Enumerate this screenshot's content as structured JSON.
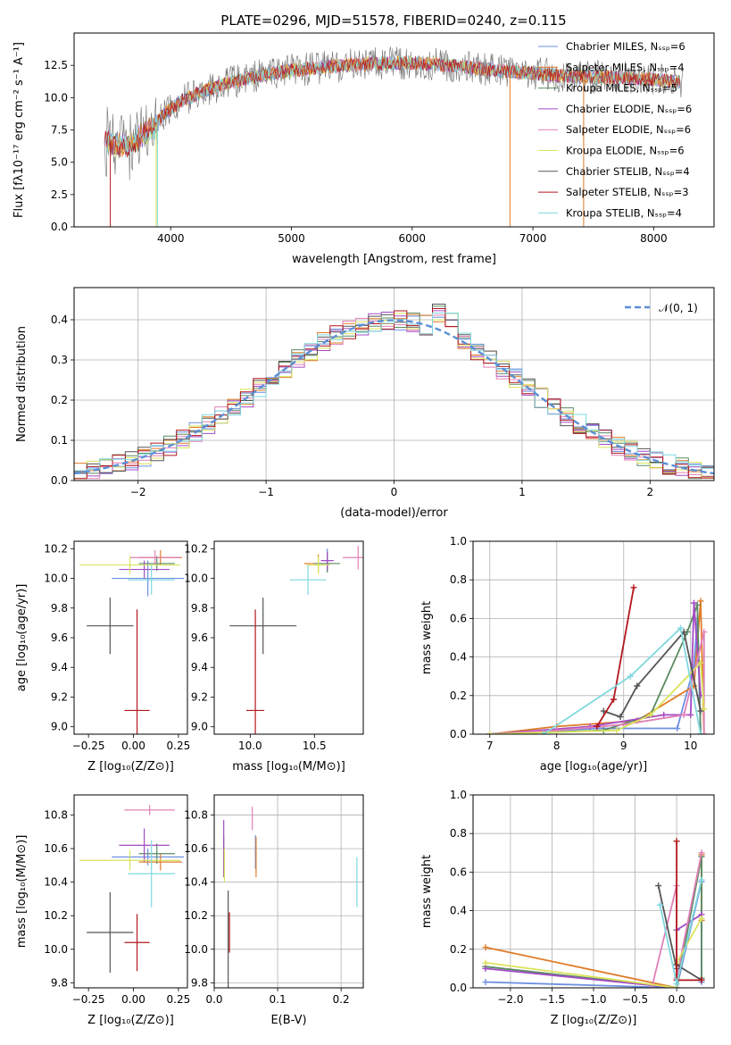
{
  "figure_title": "PLATE=0296, MJD=51578, FIBERID=0240, z=0.115",
  "model_colors": [
    "#6d8fe0",
    "#e07b27",
    "#5a8a62",
    "#a34bc4",
    "#e081b8",
    "#d9e35c",
    "#555555",
    "#b3171d",
    "#7fd8de"
  ],
  "chart_data": [
    {
      "id": "spectrum",
      "type": "line",
      "title": "PLATE=0296, MJD=51578, FIBERID=0240, z=0.115",
      "xlabel": "wavelength [Angstrom, rest frame]",
      "ylabel": "Flux [fλ10⁻¹⁷ erg cm⁻² s⁻¹ A⁻¹]",
      "xlim": [
        3200,
        8500
      ],
      "ylim": [
        0,
        15
      ],
      "xticks": [
        "4000",
        "5000",
        "6000",
        "7000",
        "8000"
      ],
      "yticks": [
        "0.0",
        "2.5",
        "5.0",
        "7.5",
        "10.0",
        "12.5"
      ],
      "legend_loc": "right",
      "series": [
        {
          "name": "Chabrier MILES, N_SSP=6",
          "legend_text": "Chabrier MILES, Nₛₛₚ=6"
        },
        {
          "name": "Salpeter MILES, N_SSP=4",
          "legend_text": "Salpeter MILES, Nₛₛₚ=4"
        },
        {
          "name": "Kroupa MILES, N_SSP=5",
          "legend_text": "Kroupa MILES, Nₛₛₚ=5"
        },
        {
          "name": "Chabrier ELODIE, N_SSP=6",
          "legend_text": "Chabrier ELODIE, Nₛₛₚ=6"
        },
        {
          "name": "Salpeter ELODIE, N_SSP=6",
          "legend_text": "Salpeter ELODIE, Nₛₛₚ=6"
        },
        {
          "name": "Kroupa ELODIE, N_SSP=6",
          "legend_text": "Kroupa ELODIE, Nₛₛₚ=6"
        },
        {
          "name": "Chabrier STELIB, N_SSP=4",
          "legend_text": "Chabrier STELIB, Nₛₛₚ=4"
        },
        {
          "name": "Salpeter STELIB, N_SSP=3",
          "legend_text": "Salpeter STELIB, Nₛₛₚ=3"
        },
        {
          "name": "Kroupa STELIB, N_SSP=4",
          "legend_text": "Kroupa STELIB, Nₛₛₚ=4"
        }
      ],
      "continuum": {
        "x": [
          3450,
          3650,
          3750,
          3850,
          3950,
          4100,
          4300,
          4500,
          4800,
          5000,
          5300,
          5600,
          5900,
          6200,
          6500,
          6800,
          7000,
          7200,
          7400,
          7600,
          7800,
          8000,
          8200
        ],
        "y": [
          6.6,
          6.3,
          6.9,
          7.6,
          8.8,
          9.8,
          10.6,
          11.2,
          11.8,
          12.1,
          12.4,
          12.6,
          12.7,
          12.6,
          12.3,
          12.0,
          11.9,
          11.7,
          11.6,
          11.6,
          11.5,
          11.4,
          11.2
        ]
      }
    },
    {
      "id": "residuals",
      "type": "histogram",
      "xlabel": "(data-model)/error",
      "ylabel": "Normed distribution",
      "xlim": [
        -2.5,
        2.5
      ],
      "ylim": [
        0,
        0.48
      ],
      "xticks": [
        "−2",
        "−1",
        "0",
        "1",
        "2"
      ],
      "yticks": [
        "0.0",
        "0.1",
        "0.2",
        "0.3",
        "0.4"
      ],
      "grid": true,
      "legend_loc": "upper right",
      "legend": "𝒩(0, 1)",
      "bin_width": 0.1,
      "normal_curve": {
        "mean": 0,
        "sigma": 1
      }
    },
    {
      "id": "age-vs-Z",
      "type": "errorbar",
      "xlabel": "Z [log₁₀(Z/Z⊙)]",
      "ylabel": "age  [log₁₀(age/yr)]",
      "xlim": [
        -0.33,
        0.3
      ],
      "ylim": [
        8.95,
        10.25
      ],
      "xticks": [
        "−0.25",
        "0.00",
        "0.25"
      ],
      "yticks": [
        "9.0",
        "9.2",
        "9.4",
        "9.6",
        "9.8",
        "10.0",
        "10.2"
      ],
      "points": [
        {
          "x": 0.08,
          "y": 10.0,
          "xerr": 0.2,
          "yerr": 0.12
        },
        {
          "x": 0.15,
          "y": 10.14,
          "xerr": 0.12,
          "yerr": 0.05
        },
        {
          "x": 0.13,
          "y": 10.1,
          "xerr": 0.1,
          "yerr": 0.05
        },
        {
          "x": 0.06,
          "y": 10.06,
          "xerr": 0.14,
          "yerr": 0.06
        },
        {
          "x": 0.12,
          "y": 10.14,
          "xerr": 0.14,
          "yerr": 0.05
        },
        {
          "x": -0.02,
          "y": 10.09,
          "xerr": 0.28,
          "yerr": 0.06
        },
        {
          "x": -0.13,
          "y": 9.68,
          "xerr": 0.13,
          "yerr": 0.19
        },
        {
          "x": 0.02,
          "y": 9.11,
          "xerr": 0.07,
          "yerr": 0.68
        },
        {
          "x": 0.1,
          "y": 9.99,
          "xerr": 0.13,
          "yerr": 0.1
        }
      ]
    },
    {
      "id": "age-vs-mass",
      "type": "errorbar",
      "xlabel": "mass [log₁₀(M/M⊙)]",
      "ylabel": "",
      "xlim": [
        9.72,
        10.88
      ],
      "ylim": [
        8.95,
        10.25
      ],
      "xticks": [
        "10.0",
        "10.5"
      ],
      "yticks": [
        "9.0",
        "9.2",
        "9.4",
        "9.6",
        "9.8",
        "10.0",
        "10.2"
      ],
      "points": [
        {
          "x": 10.6,
          "y": 10.12,
          "xerr": 0.04,
          "yerr": 0.08
        },
        {
          "x": 10.53,
          "y": 10.1,
          "xerr": 0.11,
          "yerr": 0.06
        },
        {
          "x": 10.6,
          "y": 10.1,
          "xerr": 0.1,
          "yerr": 0.06
        },
        {
          "x": 10.6,
          "y": 10.12,
          "xerr": 0.05,
          "yerr": 0.06
        },
        {
          "x": 10.84,
          "y": 10.14,
          "xerr": 0.12,
          "yerr": 0.08
        },
        {
          "x": 10.53,
          "y": 10.09,
          "xerr": 0.09,
          "yerr": 0.06
        },
        {
          "x": 10.1,
          "y": 9.68,
          "xerr": 0.26,
          "yerr": 0.19
        },
        {
          "x": 10.04,
          "y": 9.11,
          "xerr": 0.07,
          "yerr": 0.68
        },
        {
          "x": 10.45,
          "y": 9.99,
          "xerr": 0.14,
          "yerr": 0.1
        }
      ]
    },
    {
      "id": "massweight-vs-age",
      "type": "line",
      "xlabel": "age  [log₁₀(age/yr)]",
      "ylabel": "mass weight",
      "xlim": [
        6.75,
        10.35
      ],
      "ylim": [
        0,
        1.0
      ],
      "xticks": [
        "7",
        "8",
        "9",
        "10"
      ],
      "yticks": [
        "0.0",
        "0.2",
        "0.4",
        "0.6",
        "0.8",
        "1.0"
      ],
      "grid": true,
      "series": [
        {
          "x": [
            7.0,
            8.6,
            9.8,
            10.05,
            10.1,
            10.15
          ],
          "y": [
            0.0,
            0.03,
            0.03,
            0.35,
            0.6,
            0.0
          ]
        },
        {
          "x": [
            7.0,
            8.0,
            9.2,
            10.05,
            10.15,
            10.2
          ],
          "y": [
            0.0,
            0.04,
            0.07,
            0.25,
            0.69,
            0.0
          ]
        },
        {
          "x": [
            7.0,
            8.7,
            9.4,
            9.95,
            10.1,
            10.15
          ],
          "y": [
            0.0,
            0.02,
            0.1,
            0.53,
            0.67,
            0.0
          ]
        },
        {
          "x": [
            7.0,
            8.5,
            9.6,
            10.0,
            10.05,
            10.15
          ],
          "y": [
            0.0,
            0.04,
            0.1,
            0.1,
            0.68,
            0.2
          ]
        },
        {
          "x": [
            7.0,
            8.0,
            9.0,
            9.9,
            10.2,
            10.2
          ],
          "y": [
            0.0,
            0.02,
            0.05,
            0.1,
            0.53,
            0.0
          ]
        },
        {
          "x": [
            7.0,
            8.9,
            9.4,
            10.15,
            10.2
          ],
          "y": [
            0.0,
            0.02,
            0.1,
            0.37,
            0.13
          ]
        },
        {
          "x": [
            8.7,
            8.95,
            9.2,
            9.9,
            10.15
          ],
          "y": [
            0.12,
            0.09,
            0.25,
            0.53,
            0.12
          ]
        },
        {
          "x": [
            8.6,
            8.85,
            9.15
          ],
          "y": [
            0.04,
            0.18,
            0.76
          ]
        },
        {
          "x": [
            7.8,
            9.1,
            9.85,
            10.15
          ],
          "y": [
            0.0,
            0.3,
            0.55,
            0.0
          ]
        }
      ]
    },
    {
      "id": "mass-vs-Z",
      "type": "errorbar",
      "xlabel": "Z [log₁₀(Z/Z⊙)]",
      "ylabel": "mass [log₁₀(M/M⊙)]",
      "xlim": [
        -0.33,
        0.3
      ],
      "ylim": [
        9.77,
        10.92
      ],
      "xticks": [
        "−0.25",
        "0.00",
        "0.25"
      ],
      "yticks": [
        "9.8",
        "10.0",
        "10.2",
        "10.4",
        "10.6",
        "10.8"
      ],
      "points": [
        {
          "x": 0.08,
          "y": 10.55,
          "xerr": 0.2,
          "yerr": 0.05
        },
        {
          "x": 0.15,
          "y": 10.52,
          "xerr": 0.12,
          "yerr": 0.05
        },
        {
          "x": 0.13,
          "y": 10.57,
          "xerr": 0.1,
          "yerr": 0.06
        },
        {
          "x": 0.06,
          "y": 10.62,
          "xerr": 0.14,
          "yerr": 0.1
        },
        {
          "x": 0.09,
          "y": 10.83,
          "xerr": 0.14,
          "yerr": 0.03
        },
        {
          "x": -0.02,
          "y": 10.53,
          "xerr": 0.28,
          "yerr": 0.06
        },
        {
          "x": -0.13,
          "y": 10.1,
          "xerr": 0.13,
          "yerr": 0.24
        },
        {
          "x": 0.02,
          "y": 10.04,
          "xerr": 0.07,
          "yerr": 0.17
        },
        {
          "x": 0.1,
          "y": 10.45,
          "xerr": 0.13,
          "yerr": 0.2
        }
      ]
    },
    {
      "id": "mass-vs-EBV",
      "type": "errorbar",
      "xlabel": "E(B-V)",
      "ylabel": "",
      "xlim": [
        0.0,
        0.235
      ],
      "ylim": [
        9.77,
        10.92
      ],
      "xticks": [
        "0.0",
        "0.1",
        "0.2"
      ],
      "yticks": [
        "9.8",
        "10.0",
        "10.2",
        "10.4",
        "10.6",
        "10.8"
      ],
      "grid": true,
      "points": [
        {
          "x": 0.065,
          "y": 10.58,
          "xerr": 0.0,
          "yerr": 0.1
        },
        {
          "x": 0.066,
          "y": 10.55,
          "xerr": 0.0,
          "yerr": 0.12
        },
        {
          "x": 0.015,
          "y": 10.55,
          "xerr": 0.0,
          "yerr": 0.12
        },
        {
          "x": 0.015,
          "y": 10.6,
          "xerr": 0.0,
          "yerr": 0.17
        },
        {
          "x": 0.06,
          "y": 10.78,
          "xerr": 0.0,
          "yerr": 0.07
        },
        {
          "x": 0.016,
          "y": 10.5,
          "xerr": 0.0,
          "yerr": 0.1
        },
        {
          "x": 0.022,
          "y": 10.05,
          "xerr": 0.0,
          "yerr": 0.3
        },
        {
          "x": 0.024,
          "y": 10.1,
          "xerr": 0.0,
          "yerr": 0.12
        },
        {
          "x": 0.225,
          "y": 10.4,
          "xerr": 0.0,
          "yerr": 0.15
        }
      ]
    },
    {
      "id": "massweight-vs-Z",
      "type": "line",
      "xlabel": "Z [log₁₀(Z/Z⊙)]",
      "ylabel": "mass weight",
      "xlim": [
        -2.45,
        0.45
      ],
      "ylim": [
        0,
        1.0
      ],
      "xticks": [
        "−2.0",
        "−1.5",
        "−1.0",
        "−0.5",
        "0.0"
      ],
      "yticks": [
        "0.0",
        "0.2",
        "0.4",
        "0.6",
        "0.8",
        "1.0"
      ],
      "grid": true,
      "series": [
        {
          "x": [
            -2.3,
            0.0,
            0.3,
            0.3
          ],
          "y": [
            0.03,
            0.0,
            0.55,
            0.03
          ]
        },
        {
          "x": [
            -2.3,
            0.0,
            0.3,
            0.3
          ],
          "y": [
            0.21,
            0.0,
            0.69,
            0.35
          ]
        },
        {
          "x": [
            -2.3,
            0.0,
            0.3,
            0.3
          ],
          "y": [
            0.11,
            0.0,
            0.68,
            0.05
          ]
        },
        {
          "x": [
            -2.3,
            0.0,
            0.0,
            0.3
          ],
          "y": [
            0.1,
            0.0,
            0.3,
            0.38
          ]
        },
        {
          "x": [
            -0.3,
            0.0,
            0.0,
            0.3
          ],
          "y": [
            0.0,
            0.53,
            0.05,
            0.7
          ]
        },
        {
          "x": [
            -2.3,
            0.0,
            0.0,
            0.3
          ],
          "y": [
            0.13,
            0.0,
            0.13,
            0.36
          ]
        },
        {
          "x": [
            -0.22,
            0.0,
            0.0,
            0.3
          ],
          "y": [
            0.53,
            0.1,
            0.12,
            0.04
          ]
        },
        {
          "x": [
            0.0,
            0.0,
            0.3
          ],
          "y": [
            0.76,
            0.04,
            0.04
          ]
        },
        {
          "x": [
            -0.2,
            0.0,
            0.3
          ],
          "y": [
            0.43,
            0.02,
            0.56
          ]
        }
      ]
    }
  ]
}
